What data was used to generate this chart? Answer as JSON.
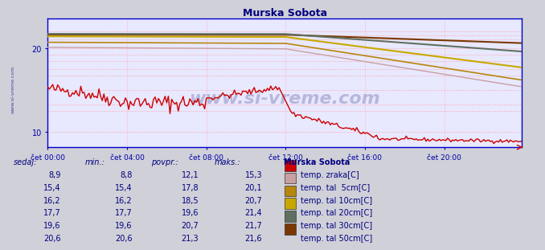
{
  "title": "Murska Sobota",
  "title_color": "#000080",
  "plot_bg_color": "#e8e8ff",
  "outer_bg_color": "#d0d0d8",
  "table_bg_color": "#e8eaf0",
  "xtick_labels": [
    "čet 00:00",
    "čet 04:00",
    "čet 08:00",
    "čet 12:00",
    "čet 16:00",
    "čet 20:00"
  ],
  "xtick_positions": [
    0,
    48,
    96,
    144,
    192,
    240
  ],
  "ytick_positions": [
    10,
    20
  ],
  "ylim": [
    8.2,
    23.5
  ],
  "xlim": [
    0,
    287
  ],
  "n_points": 288,
  "watermark": "www.si-vreme.com",
  "grid_hlines": [
    10.0,
    12.5,
    13.3,
    15.0,
    16.7,
    17.5,
    18.5,
    19.2,
    20.0,
    21.0,
    21.5,
    22.0
  ],
  "grid_vlines": [
    0,
    48,
    96,
    144,
    192,
    240
  ],
  "legend_colors": {
    "temp_zraka": "#cc0000",
    "temp_tal_5cm": "#c8a0a0",
    "temp_tal_10cm": "#b8860b",
    "temp_tal_20cm": "#c8a800",
    "temp_tal_30cm": "#607060",
    "temp_tal_50cm": "#7a3800"
  },
  "line_widths": {
    "temp_zraka": 1.0,
    "temp_tal_5cm": 1.0,
    "temp_tal_10cm": 1.2,
    "temp_tal_20cm": 1.5,
    "temp_tal_30cm": 1.5,
    "temp_tal_50cm": 1.5
  },
  "table": {
    "headers": [
      "sedaj:",
      "min.:",
      "povpr.:",
      "maks.:"
    ],
    "rows": [
      [
        "8,9",
        "8,8",
        "12,1",
        "15,3"
      ],
      [
        "15,4",
        "15,4",
        "17,8",
        "20,1"
      ],
      [
        "16,2",
        "16,2",
        "18,5",
        "20,7"
      ],
      [
        "17,7",
        "17,7",
        "19,6",
        "21,4"
      ],
      [
        "19,6",
        "19,6",
        "20,7",
        "21,7"
      ],
      [
        "20,6",
        "20,6",
        "21,3",
        "21,6"
      ]
    ],
    "series_labels": [
      "temp. zraka[C]",
      "temp. tal  5cm[C]",
      "temp. tal 10cm[C]",
      "temp. tal 20cm[C]",
      "temp. tal 30cm[C]",
      "temp. tal 50cm[C]"
    ]
  }
}
